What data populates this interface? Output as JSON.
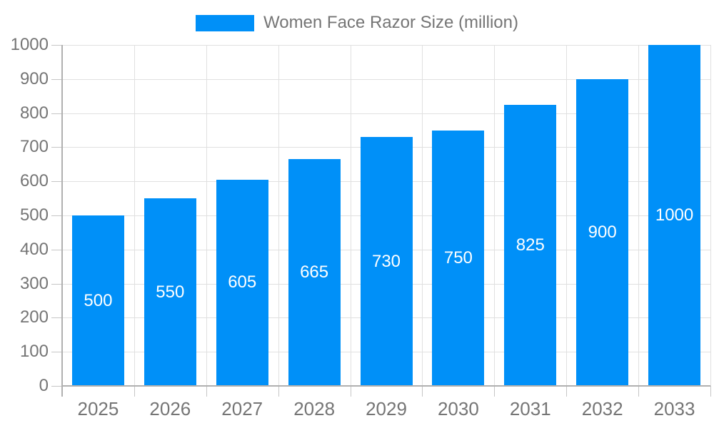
{
  "chart_data": {
    "type": "bar",
    "title": "Women Face Razor Size (million)",
    "categories": [
      "2025",
      "2026",
      "2027",
      "2028",
      "2029",
      "2030",
      "2031",
      "2032",
      "2033"
    ],
    "values": [
      500,
      550,
      605,
      665,
      730,
      750,
      825,
      900,
      1000
    ],
    "xlabel": "",
    "ylabel": "",
    "ylim": [
      0,
      1000
    ],
    "ytick_step": 100,
    "ytick_labels": [
      "0",
      "100",
      "200",
      "300",
      "400",
      "500",
      "600",
      "700",
      "800",
      "900",
      "1000"
    ],
    "legend_position": "top",
    "grid": "on",
    "value_labels_shown": true,
    "colors": {
      "bar": "#0090f8",
      "value_label": "#ffffff",
      "axis_text": "#757575",
      "grid_line": "#e0e0e0",
      "axis_line": "#b0b0b0",
      "tick": "#c6c6c6"
    }
  }
}
